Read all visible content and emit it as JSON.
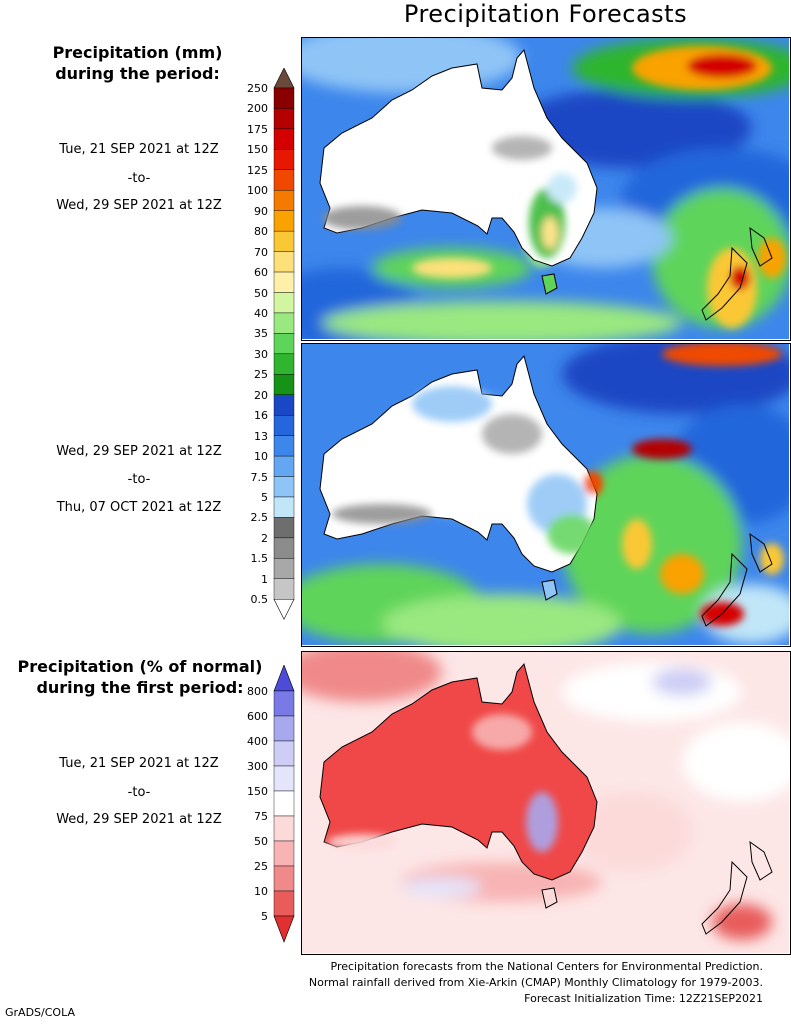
{
  "title": "Precipitation Forecasts",
  "scale_mm": {
    "heading": [
      "Precipitation (mm)",
      "during the period:"
    ],
    "labels": [
      "250",
      "200",
      "175",
      "150",
      "125",
      "100",
      "90",
      "80",
      "70",
      "60",
      "50",
      "40",
      "35",
      "30",
      "25",
      "20",
      "16",
      "13",
      "10",
      "7.5",
      "5",
      "2.5",
      "2",
      "1.5",
      "1",
      "0.5"
    ],
    "colors": [
      "#6b4a3c",
      "#8a0000",
      "#b40000",
      "#d40000",
      "#e81800",
      "#f04800",
      "#f57a00",
      "#f9a200",
      "#fbc835",
      "#fde07a",
      "#fef0a8",
      "#d2f5a0",
      "#9ae880",
      "#5ed45a",
      "#2fb52f",
      "#169316",
      "#1a47c4",
      "#2466dc",
      "#3d86ec",
      "#63a6f2",
      "#8ec4f6",
      "#c0e6f8",
      "#6e6e6e",
      "#8c8c8c",
      "#a8a8a8",
      "#c6c6c6"
    ]
  },
  "period1": {
    "start": "Tue, 21 SEP 2021 at 12Z",
    "sep": "-to-",
    "end": "Wed, 29 SEP 2021 at 12Z"
  },
  "period2": {
    "start": "Wed, 29 SEP 2021 at 12Z",
    "sep": "-to-",
    "end": "Thu, 07 OCT 2021 at 12Z"
  },
  "scale_pct": {
    "heading": [
      "Precipitation (% of normal)",
      "during the first period:"
    ],
    "labels": [
      "800",
      "600",
      "400",
      "300",
      "150",
      "75",
      "50",
      "25",
      "10",
      "5"
    ],
    "colors": [
      "#4c4cd8",
      "#7a7ae6",
      "#a8a8ee",
      "#cdcdf6",
      "#e4e4fa",
      "#ffffff",
      "#fcdada",
      "#f8b4b4",
      "#f08a8a",
      "#e85c5c",
      "#e03030"
    ]
  },
  "period3": {
    "start": "Tue, 21 SEP 2021 at 12Z",
    "sep": "-to-",
    "end": "Wed, 29 SEP 2021 at 12Z"
  },
  "footer": [
    "Precipitation forecasts from the National Centers for Environmental Prediction.",
    "Normal rainfall derived from Xie-Arkin (CMAP) Monthly Climatology for 1979-2003.",
    "Forecast Initialization Time: 12Z21SEP2021"
  ],
  "credit": "GrADS/COLA"
}
